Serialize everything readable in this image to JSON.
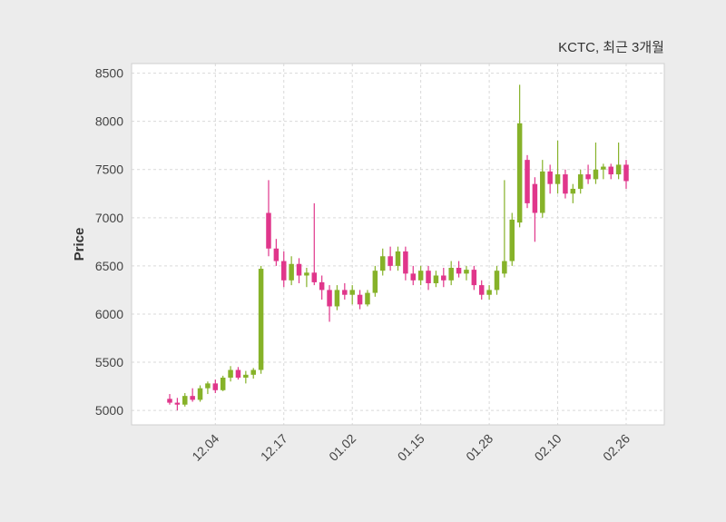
{
  "chart_data": {
    "type": "candlestick",
    "title": "KCTC, 최근 3개월",
    "ylabel": "Price",
    "ylim": [
      4850,
      8600
    ],
    "yticks": [
      5000,
      5500,
      6000,
      6500,
      7000,
      7500,
      8000,
      8500
    ],
    "xticks": [
      {
        "index": 6,
        "label": "12.04"
      },
      {
        "index": 15,
        "label": "12.17"
      },
      {
        "index": 24,
        "label": "01.02"
      },
      {
        "index": 33,
        "label": "01.15"
      },
      {
        "index": 42,
        "label": "01.28"
      },
      {
        "index": 51,
        "label": "02.10"
      },
      {
        "index": 60,
        "label": "02.26"
      }
    ],
    "up_color": "#86b229",
    "down_color": "#e0368b",
    "grid_color": "#d9d9d9",
    "plot_bg": "#ffffff",
    "figure_bg": "#ececec",
    "candles": [
      [
        5120,
        5170,
        5060,
        5080
      ],
      [
        5080,
        5130,
        5000,
        5060
      ],
      [
        5060,
        5180,
        5040,
        5150
      ],
      [
        5150,
        5230,
        5090,
        5110
      ],
      [
        5110,
        5260,
        5090,
        5230
      ],
      [
        5230,
        5300,
        5170,
        5280
      ],
      [
        5280,
        5320,
        5180,
        5210
      ],
      [
        5210,
        5360,
        5200,
        5340
      ],
      [
        5340,
        5460,
        5300,
        5420
      ],
      [
        5420,
        5450,
        5320,
        5340
      ],
      [
        5340,
        5410,
        5280,
        5370
      ],
      [
        5370,
        5440,
        5330,
        5420
      ],
      [
        5420,
        6500,
        5380,
        6470
      ],
      [
        7050,
        7390,
        6600,
        6680
      ],
      [
        6680,
        6780,
        6500,
        6550
      ],
      [
        6550,
        6650,
        6280,
        6350
      ],
      [
        6350,
        6600,
        6300,
        6520
      ],
      [
        6520,
        6580,
        6320,
        6400
      ],
      [
        6400,
        6480,
        6280,
        6430
      ],
      [
        6430,
        7150,
        6300,
        6330
      ],
      [
        6330,
        6400,
        6150,
        6250
      ],
      [
        6250,
        6300,
        5920,
        6080
      ],
      [
        6080,
        6300,
        6040,
        6250
      ],
      [
        6250,
        6320,
        6150,
        6200
      ],
      [
        6200,
        6300,
        6100,
        6250
      ],
      [
        6200,
        6250,
        6050,
        6100
      ],
      [
        6100,
        6250,
        6080,
        6220
      ],
      [
        6220,
        6500,
        6180,
        6450
      ],
      [
        6450,
        6680,
        6400,
        6600
      ],
      [
        6600,
        6700,
        6450,
        6500
      ],
      [
        6500,
        6700,
        6450,
        6650
      ],
      [
        6650,
        6700,
        6350,
        6420
      ],
      [
        6420,
        6500,
        6300,
        6350
      ],
      [
        6350,
        6500,
        6300,
        6450
      ],
      [
        6450,
        6500,
        6250,
        6320
      ],
      [
        6320,
        6450,
        6280,
        6400
      ],
      [
        6400,
        6480,
        6280,
        6350
      ],
      [
        6350,
        6550,
        6300,
        6480
      ],
      [
        6480,
        6550,
        6380,
        6420
      ],
      [
        6420,
        6500,
        6350,
        6460
      ],
      [
        6460,
        6500,
        6250,
        6300
      ],
      [
        6300,
        6350,
        6150,
        6200
      ],
      [
        6200,
        6300,
        6150,
        6250
      ],
      [
        6250,
        6500,
        6200,
        6450
      ],
      [
        6420,
        7390,
        6380,
        6550
      ],
      [
        6550,
        7050,
        6500,
        6980
      ],
      [
        6950,
        8380,
        6900,
        7980
      ],
      [
        7600,
        7650,
        7100,
        7150
      ],
      [
        7350,
        7420,
        6750,
        7050
      ],
      [
        7050,
        7600,
        7000,
        7480
      ],
      [
        7480,
        7550,
        7250,
        7350
      ],
      [
        7350,
        7800,
        7250,
        7450
      ],
      [
        7450,
        7500,
        7200,
        7250
      ],
      [
        7250,
        7350,
        7150,
        7300
      ],
      [
        7300,
        7500,
        7250,
        7450
      ],
      [
        7450,
        7550,
        7350,
        7400
      ],
      [
        7400,
        7780,
        7350,
        7500
      ],
      [
        7500,
        7560,
        7400,
        7530
      ],
      [
        7530,
        7560,
        7400,
        7450
      ],
      [
        7450,
        7780,
        7400,
        7550
      ],
      [
        7550,
        7600,
        7300,
        7380
      ]
    ]
  }
}
